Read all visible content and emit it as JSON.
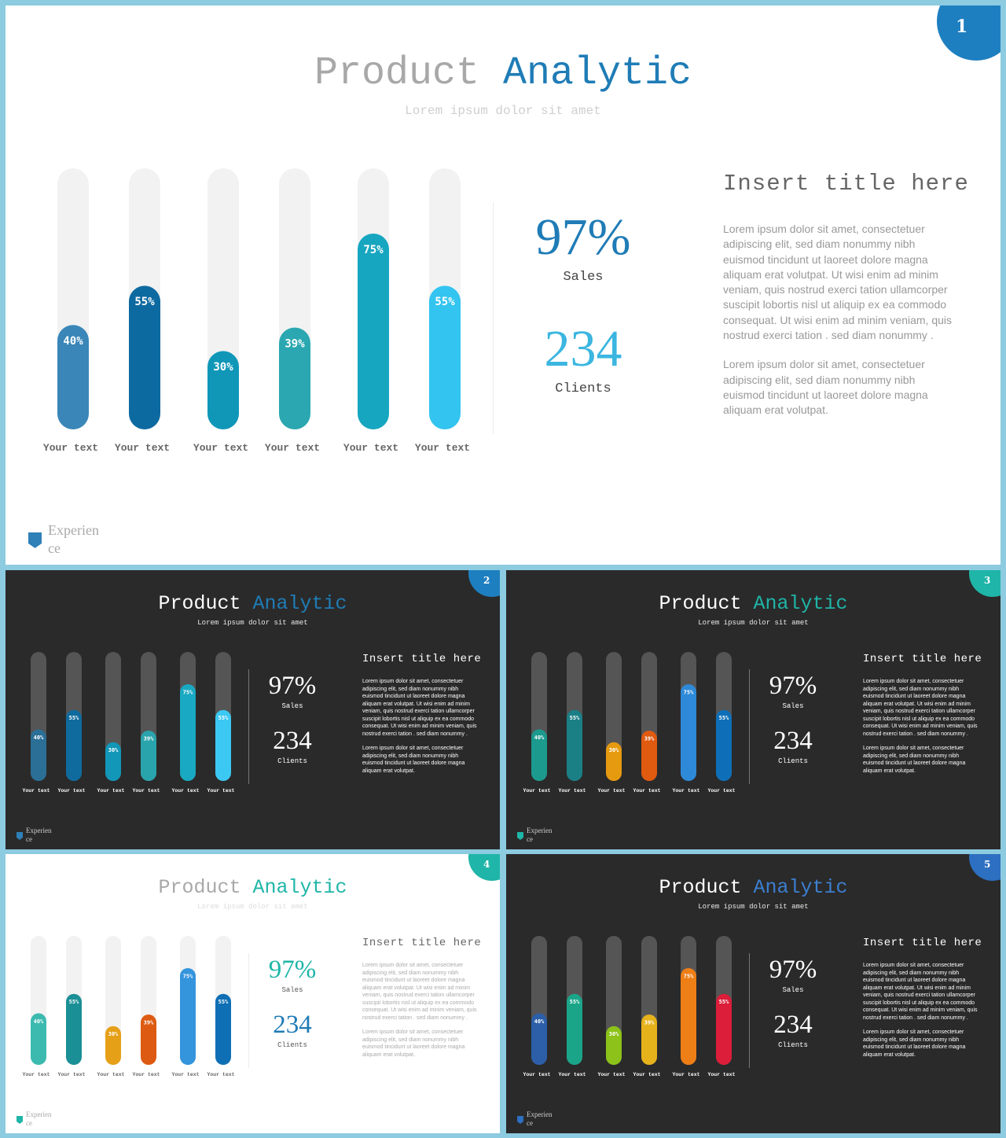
{
  "slides": [
    {
      "theme": "light",
      "badge": "1",
      "badge_color": "#1e7fc0",
      "title_a": "Product",
      "title_b": "Analytic",
      "title_a_color": "#a8a8a8",
      "title_b_color": "#1f7cb6",
      "subtitle": "Lorem ipsum dolor sit amet",
      "stat1_value": "97%",
      "stat1_label": "Sales",
      "stat1_color": "#1f7cb6",
      "stat2_value": "234",
      "stat2_label": "Clients",
      "stat2_color": "#3bb6e0",
      "insert_title": "Insert title here",
      "paragraph1": "Lorem ipsum dolor sit amet, consectetuer adipiscing elit, sed diam nonummy nibh euismod tincidunt ut laoreet dolore magna aliquam erat volutpat. Ut wisi enim ad minim veniam, quis nostrud exerci tation ullamcorper suscipit lobortis nisl ut aliquip ex ea commodo consequat. Ut wisi enim ad minim veniam, quis nostrud exerci tation . sed diam nonummy .",
      "paragraph2": "Lorem ipsum dolor sit amet, consectetuer adipiscing elit, sed diam nonummy nibh euismod tincidunt ut laoreet dolore magna aliquam erat volutpat.",
      "logo_text_1": "Experien",
      "logo_text_2": "ce",
      "track_color": "#f2f2f2",
      "bar_colors": [
        "#3a86b8",
        "#0d6aa0",
        "#1097b8",
        "#2aa7b0",
        "#16a6c0",
        "#33c4f0"
      ]
    },
    {
      "theme": "dark",
      "badge": "2",
      "badge_color": "#1e7fc0",
      "title_a": "Product",
      "title_b": "Analytic",
      "title_a_color": "#ffffff",
      "title_b_color": "#1f7cb6",
      "subtitle": "Lorem ipsum dolor sit amet",
      "stat1_value": "97%",
      "stat1_label": "Sales",
      "stat1_color": "#ffffff",
      "stat2_value": "234",
      "stat2_label": "Clients",
      "stat2_color": "#ffffff",
      "insert_title": "Insert title here",
      "paragraph1": "Lorem ipsum dolor sit amet, consectetuer adipiscing elit, sed diam nonummy nibh euismod tincidunt ut laoreet dolore magna aliquam erat volutpat. Ut wisi enim ad minim veniam, quis nostrud exerci tation ullamcorper suscipit lobortis nisl ut aliquip ex ea commodo consequat. Ut wisi enim ad minim veniam, quis nostrud exerci tation . sed diam nonummy .",
      "paragraph2": "Lorem ipsum dolor sit amet, consectetuer adipiscing elit, sed diam nonummy nibh euismod tincidunt ut laoreet dolore magna aliquam erat volutpat.",
      "logo_text_1": "Experien",
      "logo_text_2": "ce",
      "track_color": "#555555",
      "bar_colors": [
        "#2b6f96",
        "#0f6b9e",
        "#1297b8",
        "#2aa4ac",
        "#19a9c2",
        "#3bc8f2"
      ]
    },
    {
      "theme": "dark",
      "badge": "3",
      "badge_color": "#1fb5a8",
      "title_a": "Product",
      "title_b": "Analytic",
      "title_a_color": "#ffffff",
      "title_b_color": "#1fb5a8",
      "subtitle": "Lorem ipsum dolor sit amet",
      "stat1_value": "97%",
      "stat1_label": "Sales",
      "stat1_color": "#ffffff",
      "stat2_value": "234",
      "stat2_label": "Clients",
      "stat2_color": "#ffffff",
      "insert_title": "Insert title here",
      "paragraph1": "Lorem ipsum dolor sit amet, consectetuer adipiscing elit, sed diam nonummy nibh euismod tincidunt ut laoreet dolore magna aliquam erat volutpat. Ut wisi enim ad minim veniam, quis nostrud exerci tation ullamcorper suscipit lobortis nisl ut aliquip ex ea commodo consequat. Ut wisi enim ad minim veniam, quis nostrud exerci tation . sed diam nonummy .",
      "paragraph2": "Lorem ipsum dolor sit amet, consectetuer adipiscing elit, sed diam nonummy nibh euismod tincidunt ut laoreet dolore magna aliquam erat volutpat.",
      "logo_text_1": "Experien",
      "logo_text_2": "ce",
      "track_color": "#555555",
      "bar_colors": [
        "#1c9a8e",
        "#1b7f86",
        "#e69a10",
        "#e05a10",
        "#2e8ad8",
        "#0e6fb8"
      ]
    },
    {
      "theme": "light",
      "badge": "4",
      "badge_color": "#1fb5a8",
      "title_a": "Product",
      "title_b": "Analytic",
      "title_a_color": "#a8a8a8",
      "title_b_color": "#1fb5a8",
      "subtitle": "Lorem ipsum dolor sit amet",
      "stat1_value": "97%",
      "stat1_label": "Sales",
      "stat1_color": "#1fb5a8",
      "stat2_value": "234",
      "stat2_label": "Clients",
      "stat2_color": "#1f7cb6",
      "insert_title": "Insert title here",
      "paragraph1": "Lorem ipsum dolor sit amet, consectetuer adipiscing elit, sed diam nonummy nibh euismod tincidunt ut laoreet dolore magna aliquam erat volutpat. Ut wisi enim ad minim veniam, quis nostrud exerci tation ullamcorper suscipit lobortis nisl ut aliquip ex ea commodo consequat. Ut wisi enim ad minim veniam, quis nostrud exerci tation . sed diam nonummy .",
      "paragraph2": "Lorem ipsum dolor sit amet, consectetuer adipiscing elit, sed diam nonummy nibh euismod tincidunt ut laoreet dolore magna aliquam erat volutpat.",
      "logo_text_1": "Experien",
      "logo_text_2": "ce",
      "track_color": "#f2f2f2",
      "bar_colors": [
        "#3cbab0",
        "#1b8f96",
        "#e6a017",
        "#dd5a12",
        "#3494dc",
        "#0f6fb5"
      ]
    },
    {
      "theme": "dark",
      "badge": "5",
      "badge_color": "#2d6fc0",
      "title_a": "Product",
      "title_b": "Analytic",
      "title_a_color": "#ffffff",
      "title_b_color": "#3c7fd0",
      "subtitle": "Lorem ipsum dolor sit amet",
      "stat1_value": "97%",
      "stat1_label": "Sales",
      "stat1_color": "#ffffff",
      "stat2_value": "234",
      "stat2_label": "Clients",
      "stat2_color": "#ffffff",
      "insert_title": "Insert title here",
      "paragraph1": "Lorem ipsum dolor sit amet, consectetuer adipiscing elit, sed diam nonummy nibh euismod tincidunt ut laoreet dolore magna aliquam erat volutpat. Ut wisi enim ad minim veniam, quis nostrud exerci tation ullamcorper suscipit lobortis nisl ut aliquip ex ea commodo consequat. Ut wisi enim ad minim veniam, quis nostrud exerci tation . sed diam nonummy .",
      "paragraph2": "Lorem ipsum dolor sit amet, consectetuer adipiscing elit, sed diam nonummy nibh euismod tincidunt ut laoreet dolore magna aliquam erat volutpat.",
      "logo_text_1": "Experien",
      "logo_text_2": "ce",
      "track_color": "#555555",
      "bar_colors": [
        "#2c5fa8",
        "#1aa589",
        "#8cc21a",
        "#e6b21c",
        "#ee7e16",
        "#dc1e3a"
      ]
    }
  ],
  "chart_data": {
    "type": "bar",
    "categories": [
      "Your text",
      "Your text",
      "Your text",
      "Your text",
      "Your text",
      "Your text"
    ],
    "values": [
      40,
      55,
      30,
      39,
      75,
      55
    ],
    "value_labels": [
      "40%",
      "55%",
      "30%",
      "39%",
      "75%",
      "55%"
    ],
    "ylim": [
      0,
      100
    ],
    "grid": false
  }
}
